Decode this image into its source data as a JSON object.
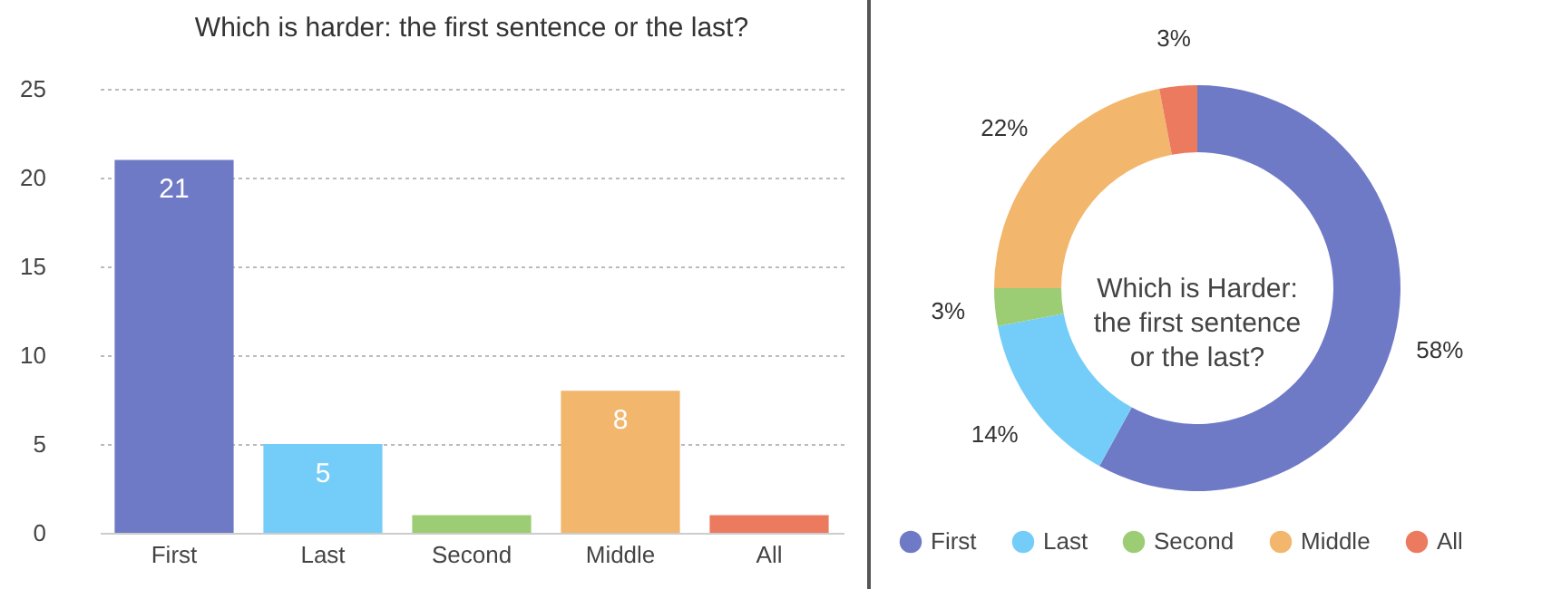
{
  "chart_data": [
    {
      "type": "bar",
      "title": "Which is harder: the first sentence or the last?",
      "categories": [
        "First",
        "Last",
        "Second",
        "Middle",
        "All"
      ],
      "values": [
        21,
        5,
        1,
        8,
        1
      ],
      "colors": [
        "#6f7ac6",
        "#74cdf8",
        "#9ccd74",
        "#f2b66d",
        "#ec7a5f"
      ],
      "value_labels": [
        "21",
        "5",
        null,
        "8",
        null
      ],
      "ylim": [
        0,
        25
      ],
      "yticks": [
        0,
        5,
        10,
        15,
        20,
        25
      ],
      "grid": "y",
      "legend": false
    },
    {
      "type": "donut",
      "title": "Which is Harder: the first sentence or the last?",
      "categories": [
        "First",
        "Last",
        "Second",
        "Middle",
        "All"
      ],
      "values": [
        58,
        14,
        3,
        22,
        3
      ],
      "colors": [
        "#6f7ac6",
        "#74cdf8",
        "#9ccd74",
        "#f2b66d",
        "#ec7a5f"
      ],
      "value_labels": [
        "58%",
        "14%",
        "3%",
        "22%",
        "3%"
      ],
      "legend": "bottom"
    }
  ]
}
